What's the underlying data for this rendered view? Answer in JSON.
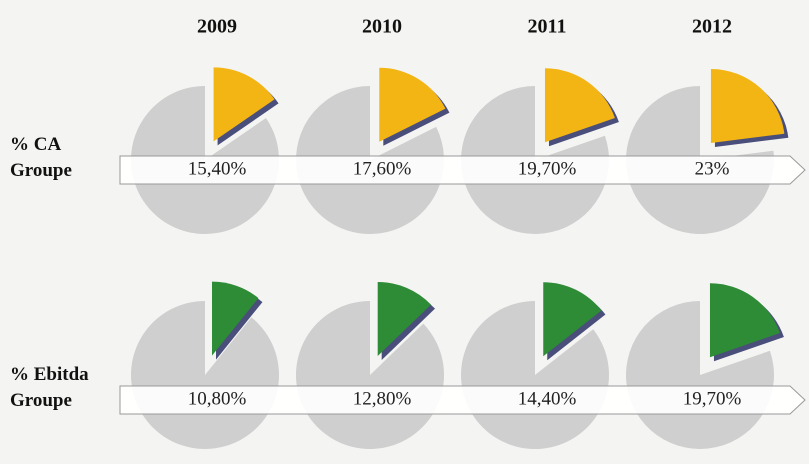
{
  "chart_data": {
    "type": "pie",
    "categories": [
      "2009",
      "2010",
      "2011",
      "2012"
    ],
    "series": [
      {
        "name": "% CA Groupe",
        "color": "#f2b514",
        "values": [
          15.4,
          17.6,
          19.7,
          23
        ],
        "value_labels": [
          "15,40%",
          "17,60%",
          "19,70%",
          "23%"
        ]
      },
      {
        "name": "% Ebitda Groupe",
        "color": "#2e8b36",
        "values": [
          10.8,
          12.8,
          14.4,
          19.7
        ],
        "value_labels": [
          "10,80%",
          "12,80%",
          "14,40%",
          "19,70%"
        ]
      }
    ]
  }
}
